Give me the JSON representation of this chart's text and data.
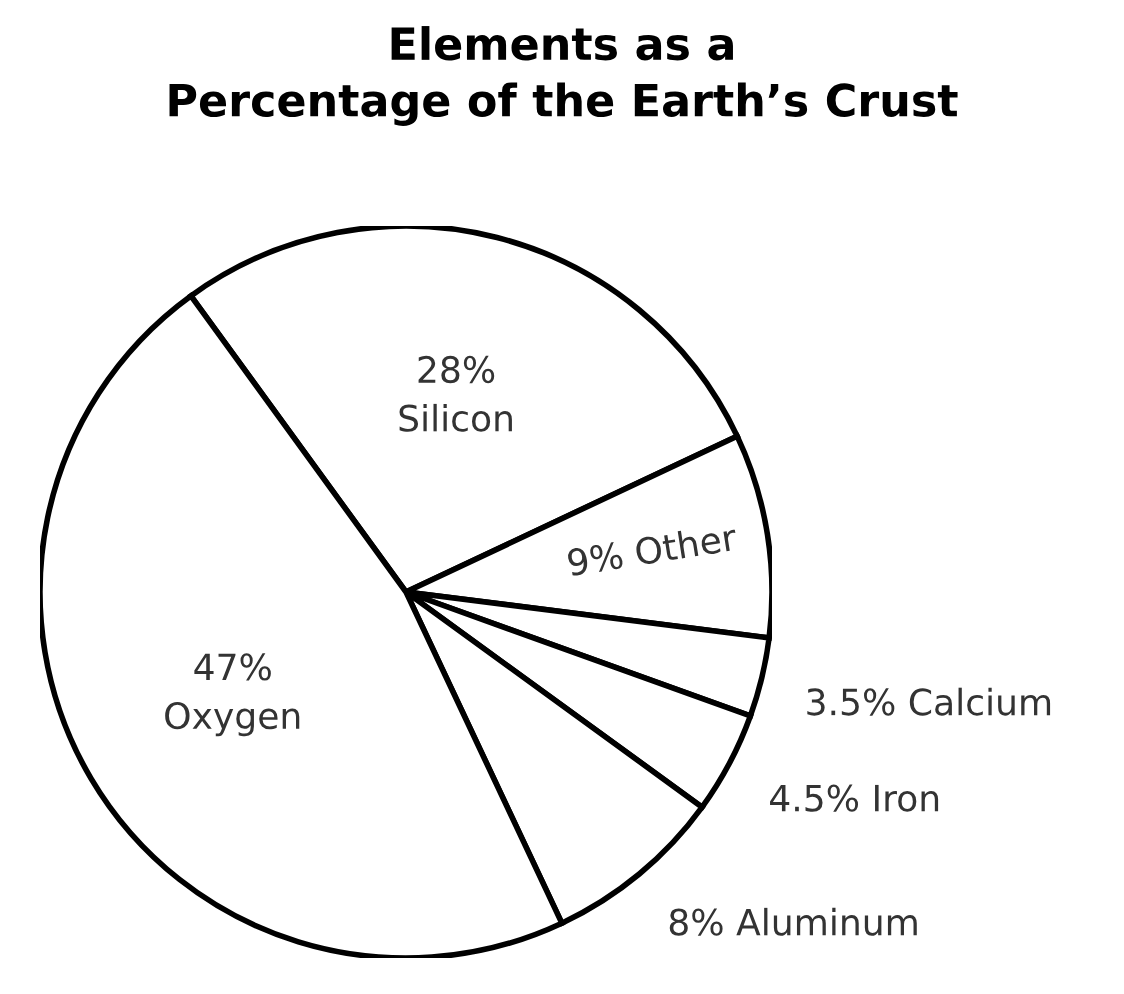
{
  "chart_data": {
    "type": "pie",
    "title": "Elements as a\nPercentage of the Earth’s Crust",
    "categories": [
      "Silicon",
      "Other",
      "Calcium",
      "Iron",
      "Aluminum",
      "Oxygen"
    ],
    "values": [
      28,
      9,
      3.5,
      4.5,
      8,
      47
    ],
    "value_labels": [
      "28%",
      "9%",
      "3.5%",
      "4.5%",
      "8%",
      "47%"
    ],
    "colors": [
      "#ffffff",
      "#ffffff",
      "#ffffff",
      "#ffffff",
      "#ffffff",
      "#ffffff"
    ]
  }
}
